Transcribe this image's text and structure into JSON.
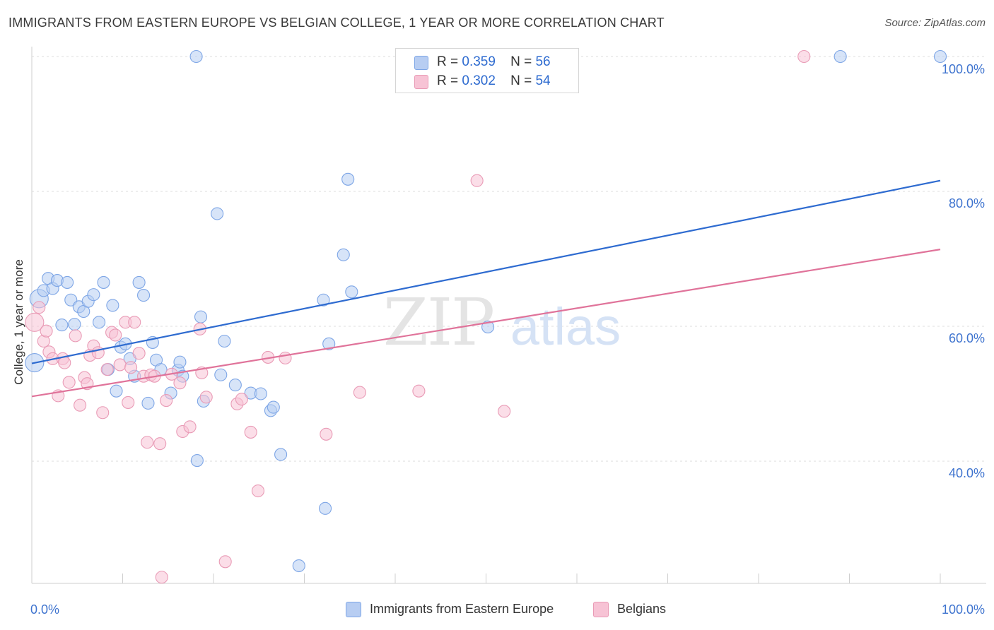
{
  "title": "IMMIGRANTS FROM EASTERN EUROPE VS BELGIAN COLLEGE, 1 YEAR OR MORE CORRELATION CHART",
  "source": "Source: ZipAtlas.com",
  "watermark": {
    "zip": "ZIP",
    "atlas": "atlas"
  },
  "legend": {
    "r_label": "R =",
    "n_label": "N =",
    "rows": [
      {
        "r": "0.359",
        "n": "56",
        "color": "#4a7fd4"
      },
      {
        "r": "0.302",
        "n": "54",
        "color": "#e0739a"
      }
    ]
  },
  "chart_data": {
    "type": "scatter",
    "title": "IMMIGRANTS FROM EASTERN EUROPE VS BELGIAN COLLEGE, 1 YEAR OR MORE CORRELATION CHART",
    "xlabel": "",
    "ylabel": "College, 1 year or more",
    "x_tick_labels": [
      "0.0%",
      "100.0%"
    ],
    "y_tick_labels": [
      "40.0%",
      "60.0%",
      "80.0%",
      "100.0%"
    ],
    "y_ticks": [
      40,
      60,
      80,
      100
    ],
    "xlim": [
      0,
      100
    ],
    "ylim": [
      22,
      102
    ],
    "grid": true,
    "series": [
      {
        "name": "Immigrants from Eastern Europe",
        "color": "#7ea6e6",
        "fill": "#b7cdf2",
        "line_color": "#2e6bd0",
        "trend": {
          "x": [
            0,
            100
          ],
          "y": [
            54.5,
            81.6
          ]
        },
        "points": [
          [
            0.3,
            54.6
          ],
          [
            0.8,
            64.1
          ],
          [
            1.3,
            65.3
          ],
          [
            1.8,
            67.1
          ],
          [
            2.3,
            65.6
          ],
          [
            2.8,
            66.8
          ],
          [
            3.3,
            60.2
          ],
          [
            3.9,
            66.5
          ],
          [
            4.3,
            63.9
          ],
          [
            4.7,
            60.3
          ],
          [
            5.2,
            62.9
          ],
          [
            5.7,
            62.2
          ],
          [
            6.2,
            63.7
          ],
          [
            6.8,
            64.7
          ],
          [
            7.4,
            60.6
          ],
          [
            7.9,
            66.5
          ],
          [
            8.4,
            53.6
          ],
          [
            8.9,
            63.1
          ],
          [
            9.3,
            50.4
          ],
          [
            9.8,
            56.9
          ],
          [
            10.3,
            57.4
          ],
          [
            10.8,
            55.2
          ],
          [
            11.3,
            52.6
          ],
          [
            11.8,
            66.5
          ],
          [
            12.3,
            64.6
          ],
          [
            12.8,
            48.6
          ],
          [
            13.3,
            57.6
          ],
          [
            13.7,
            55.0
          ],
          [
            14.2,
            53.6
          ],
          [
            15.3,
            50.1
          ],
          [
            16.1,
            53.5
          ],
          [
            16.3,
            54.7
          ],
          [
            16.6,
            52.6
          ],
          [
            18.1,
            100.0
          ],
          [
            18.2,
            40.1
          ],
          [
            18.6,
            61.4
          ],
          [
            18.9,
            48.9
          ],
          [
            20.4,
            76.7
          ],
          [
            20.8,
            52.8
          ],
          [
            21.2,
            57.8
          ],
          [
            22.4,
            51.3
          ],
          [
            24.1,
            50.1
          ],
          [
            25.2,
            50.0
          ],
          [
            26.3,
            47.5
          ],
          [
            26.6,
            48.0
          ],
          [
            27.4,
            41.0
          ],
          [
            29.4,
            24.5
          ],
          [
            32.1,
            63.9
          ],
          [
            32.3,
            33.0
          ],
          [
            32.7,
            57.4
          ],
          [
            34.3,
            70.6
          ],
          [
            34.8,
            81.8
          ],
          [
            35.2,
            65.1
          ],
          [
            50.2,
            59.9
          ],
          [
            89.0,
            100.0
          ],
          [
            100.0,
            100.0
          ]
        ]
      },
      {
        "name": "Belgians",
        "color": "#e99bb6",
        "fill": "#f7c3d5",
        "line_color": "#e0739a",
        "trend": {
          "x": [
            0,
            100
          ],
          "y": [
            49.6,
            71.4
          ]
        },
        "points": [
          [
            0.3,
            60.6
          ],
          [
            0.8,
            62.8
          ],
          [
            1.3,
            57.8
          ],
          [
            1.6,
            59.3
          ],
          [
            1.9,
            56.2
          ],
          [
            2.3,
            55.2
          ],
          [
            2.9,
            49.7
          ],
          [
            3.4,
            55.2
          ],
          [
            3.6,
            54.6
          ],
          [
            4.1,
            51.7
          ],
          [
            4.8,
            58.6
          ],
          [
            5.3,
            48.3
          ],
          [
            5.8,
            52.4
          ],
          [
            6.1,
            51.5
          ],
          [
            6.4,
            55.7
          ],
          [
            6.8,
            57.1
          ],
          [
            7.3,
            56.1
          ],
          [
            7.8,
            47.2
          ],
          [
            8.3,
            53.6
          ],
          [
            8.8,
            59.1
          ],
          [
            9.2,
            58.7
          ],
          [
            9.7,
            54.3
          ],
          [
            10.3,
            60.6
          ],
          [
            10.6,
            48.7
          ],
          [
            10.9,
            53.9
          ],
          [
            11.3,
            60.6
          ],
          [
            11.8,
            56.0
          ],
          [
            12.3,
            52.6
          ],
          [
            12.7,
            42.8
          ],
          [
            13.1,
            52.8
          ],
          [
            13.5,
            52.6
          ],
          [
            14.1,
            42.6
          ],
          [
            14.3,
            22.8
          ],
          [
            14.8,
            49.0
          ],
          [
            15.4,
            52.9
          ],
          [
            16.3,
            51.6
          ],
          [
            16.6,
            44.4
          ],
          [
            17.4,
            45.1
          ],
          [
            18.5,
            59.6
          ],
          [
            18.7,
            53.1
          ],
          [
            19.2,
            49.5
          ],
          [
            21.3,
            25.1
          ],
          [
            22.6,
            48.5
          ],
          [
            23.1,
            49.2
          ],
          [
            24.1,
            44.3
          ],
          [
            24.9,
            35.6
          ],
          [
            26.0,
            55.4
          ],
          [
            27.9,
            55.3
          ],
          [
            32.4,
            44.0
          ],
          [
            36.1,
            50.2
          ],
          [
            42.6,
            50.4
          ],
          [
            49.0,
            81.6
          ],
          [
            52.0,
            47.4
          ],
          [
            85.0,
            100.0
          ]
        ]
      }
    ]
  },
  "bottom_legend": [
    {
      "label": "Immigrants from Eastern Europe"
    },
    {
      "label": "Belgians"
    }
  ]
}
